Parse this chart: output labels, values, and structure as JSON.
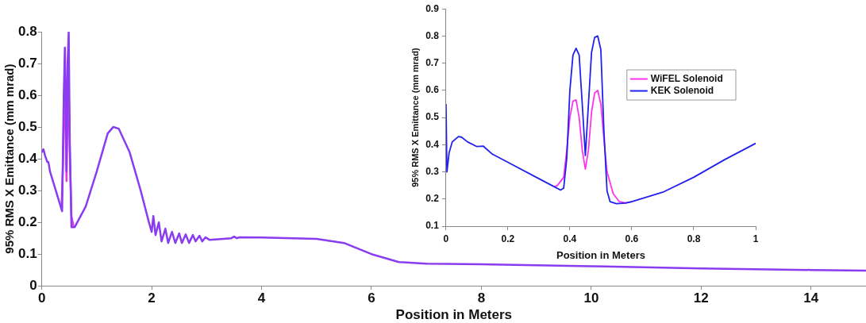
{
  "chart_data": [
    {
      "type": "line",
      "xlabel": "Position in Meters",
      "ylabel": "95% RMS X Emittance (mm mrad)",
      "xlim": [
        0,
        15
      ],
      "xticks": [
        0,
        2,
        4,
        6,
        8,
        10,
        12,
        14
      ],
      "ylim": [
        0,
        0.8
      ],
      "yticks": [
        0,
        0.1,
        0.2,
        0.3,
        0.4,
        0.5,
        0.6,
        0.7,
        0.8
      ],
      "grid": false,
      "legend": false,
      "marker": "none",
      "line_style": "solid",
      "series": [
        {
          "color": "#e838e8",
          "x": [
            0.36,
            0.39,
            0.41,
            0.42,
            0.44,
            0.45,
            0.46,
            0.48,
            0.49,
            0.51,
            0.54,
            0.58
          ],
          "values": [
            0.25,
            0.4,
            0.62,
            0.65,
            0.45,
            0.33,
            0.45,
            0.6,
            0.62,
            0.42,
            0.22,
            0.186
          ]
        },
        {
          "color": "#8a3cf0",
          "x": [
            0,
            0.03,
            0.06,
            0.1,
            0.12,
            0.15,
            0.37,
            0.4,
            0.42,
            0.44,
            0.45,
            0.47,
            0.49,
            0.51,
            0.54,
            0.6,
            0.8,
            1.0,
            1.2,
            1.3,
            1.4,
            1.6,
            1.8,
            1.95,
            2.0,
            2.03,
            2.07,
            2.13,
            2.18,
            2.25,
            2.3,
            2.37,
            2.43,
            2.5,
            2.55,
            2.62,
            2.68,
            2.75,
            2.8,
            2.87,
            2.92,
            2.98,
            3.05,
            3.45,
            3.5,
            3.55,
            3.6,
            4,
            5,
            5.5,
            6,
            6.5,
            7,
            8,
            10,
            12,
            14,
            15
          ],
          "values": [
            0.42,
            0.43,
            0.41,
            0.39,
            0.39,
            0.36,
            0.235,
            0.6,
            0.75,
            0.55,
            0.36,
            0.7,
            0.8,
            0.45,
            0.185,
            0.185,
            0.25,
            0.36,
            0.48,
            0.5,
            0.495,
            0.42,
            0.3,
            0.2,
            0.17,
            0.22,
            0.16,
            0.2,
            0.14,
            0.18,
            0.135,
            0.17,
            0.135,
            0.165,
            0.135,
            0.162,
            0.135,
            0.16,
            0.14,
            0.158,
            0.14,
            0.153,
            0.145,
            0.15,
            0.155,
            0.15,
            0.153,
            0.152,
            0.148,
            0.135,
            0.1,
            0.075,
            0.07,
            0.068,
            0.062,
            0.055,
            0.05,
            0.048
          ]
        }
      ]
    },
    {
      "type": "line",
      "xlabel": "Position in Meters",
      "ylabel": "95% RMS X Emittance (mm mrad)",
      "xlim": [
        0,
        1
      ],
      "xticks": [
        0,
        0.2,
        0.4,
        0.6,
        0.8,
        1
      ],
      "ylim": [
        0.1,
        0.9
      ],
      "yticks": [
        0.1,
        0.2,
        0.3,
        0.4,
        0.5,
        0.6,
        0.7,
        0.8,
        0.9
      ],
      "grid": false,
      "legend": "right",
      "marker": "none",
      "line_style": "solid",
      "series": [
        {
          "name": "WiFEL Solenoid",
          "color": "#ff33ee",
          "x": [
            0.35,
            0.36,
            0.38,
            0.39,
            0.4,
            0.41,
            0.42,
            0.43,
            0.44,
            0.45,
            0.46,
            0.47,
            0.48,
            0.49,
            0.5,
            0.51,
            0.52,
            0.54,
            0.56,
            0.58,
            0.6
          ],
          "values": [
            0.245,
            0.25,
            0.28,
            0.38,
            0.5,
            0.56,
            0.565,
            0.5,
            0.38,
            0.31,
            0.38,
            0.52,
            0.59,
            0.6,
            0.55,
            0.42,
            0.3,
            0.22,
            0.19,
            0.186,
            0.19
          ]
        },
        {
          "name": "KEK Solenoid",
          "color": "#2222ee",
          "x": [
            0,
            0.003,
            0.01,
            0.02,
            0.04,
            0.05,
            0.07,
            0.1,
            0.12,
            0.13,
            0.15,
            0.2,
            0.3,
            0.35,
            0.37,
            0.38,
            0.39,
            0.4,
            0.41,
            0.42,
            0.43,
            0.44,
            0.45,
            0.46,
            0.47,
            0.48,
            0.49,
            0.5,
            0.51,
            0.52,
            0.53,
            0.55,
            0.58,
            0.6,
            0.7,
            0.8,
            0.9,
            1.0
          ],
          "values": [
            0.55,
            0.3,
            0.37,
            0.41,
            0.43,
            0.428,
            0.41,
            0.393,
            0.395,
            0.385,
            0.365,
            0.335,
            0.275,
            0.245,
            0.233,
            0.24,
            0.35,
            0.6,
            0.73,
            0.755,
            0.73,
            0.55,
            0.36,
            0.55,
            0.74,
            0.795,
            0.8,
            0.75,
            0.45,
            0.23,
            0.19,
            0.183,
            0.185,
            0.19,
            0.225,
            0.28,
            0.345,
            0.405
          ]
        }
      ]
    }
  ]
}
